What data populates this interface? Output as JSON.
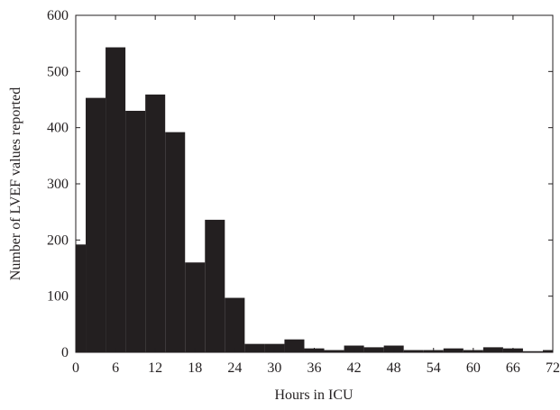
{
  "chart_data": {
    "type": "histogram",
    "xlabel": "Hours in ICU",
    "ylabel": "Number of LVEF values reported",
    "bins": [
      -1.5,
      1.5,
      4.5,
      7.5,
      10.5,
      13.5,
      16.5,
      19.5,
      22.5,
      25.5,
      28.5,
      31.5,
      34.5,
      37.5,
      40.5,
      43.5,
      46.5,
      49.5,
      52.5,
      55.5,
      58.5,
      61.5,
      64.5,
      67.5,
      70.5,
      73.5
    ],
    "values": [
      192,
      453,
      543,
      430,
      459,
      392,
      160,
      236,
      97,
      15,
      15,
      23,
      7,
      4,
      12,
      9,
      12,
      4,
      4,
      7,
      4,
      9,
      7,
      2,
      4
    ],
    "color": "#231f20",
    "xlim": [
      0,
      72
    ],
    "xticks": [
      0,
      6,
      12,
      18,
      24,
      30,
      36,
      42,
      48,
      54,
      60,
      66,
      72
    ],
    "ylim": [
      0,
      600
    ],
    "yticks": [
      0,
      100,
      200,
      300,
      400,
      500,
      600
    ]
  }
}
